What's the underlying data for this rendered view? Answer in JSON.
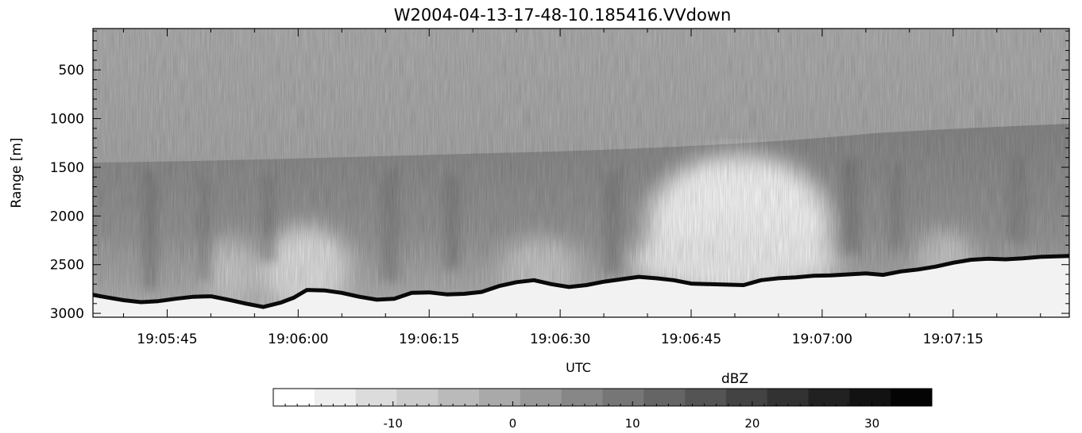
{
  "chart_data": [
    {
      "type": "heatmap",
      "title": "W2004-04-13-17-48-10.185416.VVdown",
      "xlabel": "UTC",
      "ylabel": "Range [m]",
      "x_ticks": [
        "19:05:45",
        "19:06:00",
        "19:06:15",
        "19:06:30",
        "19:06:45",
        "19:07:00",
        "19:07:15"
      ],
      "x_tick_seconds": [
        345,
        360,
        375,
        390,
        405,
        420,
        435
      ],
      "xlim_seconds": [
        336.5,
        448.3
      ],
      "y_ticks": [
        500,
        1000,
        1500,
        2000,
        2500,
        3000
      ],
      "ylim": [
        75,
        3040
      ],
      "y_inverted": true,
      "colormap": "grayscale, white = low dBZ, black = high dBZ",
      "series": [
        {
          "description": "surface echo",
          "x_seconds": [
            336.5,
            338,
            340,
            342,
            344,
            346,
            348,
            350,
            352,
            354,
            356,
            358,
            359.5,
            361,
            363,
            365,
            367,
            369,
            371,
            373,
            375,
            377,
            379,
            381,
            383,
            385,
            387,
            389,
            391,
            393,
            395,
            397,
            399,
            401,
            403,
            405,
            407,
            409,
            411,
            413,
            415,
            417,
            419,
            421,
            423,
            425,
            427,
            429,
            431,
            433,
            435,
            437,
            439,
            441,
            443,
            445,
            448.3
          ],
          "range_m": [
            2810,
            2835,
            2865,
            2885,
            2875,
            2850,
            2830,
            2825,
            2860,
            2900,
            2935,
            2890,
            2840,
            2760,
            2765,
            2790,
            2830,
            2860,
            2850,
            2790,
            2785,
            2805,
            2800,
            2780,
            2720,
            2680,
            2660,
            2700,
            2730,
            2710,
            2675,
            2650,
            2625,
            2640,
            2660,
            2695,
            2700,
            2705,
            2710,
            2660,
            2640,
            2630,
            2615,
            2610,
            2600,
            2590,
            2605,
            2570,
            2550,
            2520,
            2480,
            2450,
            2440,
            2445,
            2435,
            2420,
            2410
          ]
        }
      ]
    },
    {
      "type": "colorbar",
      "label": "dBZ",
      "ticks": [
        -10,
        0,
        10,
        20,
        30
      ],
      "range": [
        -20,
        35
      ],
      "levels": 16,
      "colors": [
        "#ffffff",
        "#eeeeee",
        "#dcdcdc",
        "#cbcbcb",
        "#bababa",
        "#a9a9a9",
        "#989898",
        "#878787",
        "#767676",
        "#656565",
        "#545454",
        "#434343",
        "#323232",
        "#212121",
        "#121212",
        "#040404"
      ]
    }
  ]
}
